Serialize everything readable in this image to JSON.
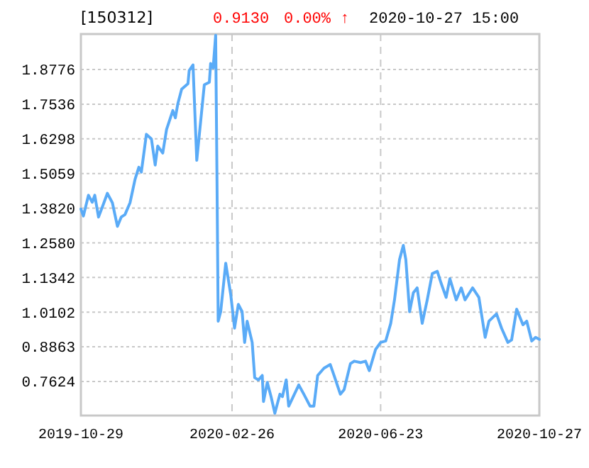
{
  "chart_data": {
    "type": "line",
    "title": "[150312]",
    "annotations": [
      "0.9130",
      "0.00% ↑",
      "2020-10-27 15:00"
    ],
    "xlim": [
      "2019-10-29",
      "2020-10-27"
    ],
    "xticks": [
      "2019-10-29",
      "2020-02-26",
      "2020-06-23",
      "2020-10-27"
    ],
    "ylim": [
      0.6407,
      2.0043
    ],
    "yticks": [
      {
        "value": 0.7624,
        "label": "0.7624"
      },
      {
        "value": 0.8863,
        "label": "0.8863"
      },
      {
        "value": 1.0102,
        "label": "1.0102"
      },
      {
        "value": 1.1342,
        "label": "1.1342"
      },
      {
        "value": 1.258,
        "label": "1.2580"
      },
      {
        "value": 1.382,
        "label": "1.3820"
      },
      {
        "value": 1.5059,
        "label": "1.5059"
      },
      {
        "value": 1.6298,
        "label": "1.6298"
      },
      {
        "value": 1.7536,
        "label": "1.7536"
      },
      {
        "value": 1.8776,
        "label": "1.8776"
      }
    ],
    "grid": true,
    "marker": "none",
    "line_style": "solid",
    "x": [
      "2019-10-29",
      "2019-10-31",
      "2019-11-04",
      "2019-11-07",
      "2019-11-09",
      "2019-11-12",
      "2019-11-16",
      "2019-11-19",
      "2019-11-23",
      "2019-11-27",
      "2019-11-30",
      "2019-12-03",
      "2019-12-07",
      "2019-12-11",
      "2019-12-14",
      "2019-12-16",
      "2019-12-20",
      "2019-12-24",
      "2019-12-27",
      "2019-12-29",
      "2020-01-02",
      "2020-01-05",
      "2020-01-10",
      "2020-01-12",
      "2020-01-14",
      "2020-01-17",
      "2020-01-22",
      "2020-01-23",
      "2020-01-26",
      "2020-01-29",
      "2020-02-01",
      "2020-02-04",
      "2020-02-08",
      "2020-02-09",
      "2020-02-11",
      "2020-02-13",
      "2020-02-14",
      "2020-02-15",
      "2020-02-17",
      "2020-02-21",
      "2020-02-25",
      "2020-02-28",
      "2020-03-02",
      "2020-03-05",
      "2020-03-07",
      "2020-03-09",
      "2020-03-13",
      "2020-03-15",
      "2020-03-18",
      "2020-03-21",
      "2020-03-22",
      "2020-03-25",
      "2020-03-28",
      "2020-03-31",
      "2020-04-04",
      "2020-04-06",
      "2020-04-09",
      "2020-04-11",
      "2020-04-19",
      "2020-04-23",
      "2020-04-28",
      "2020-05-01",
      "2020-05-04",
      "2020-05-09",
      "2020-05-14",
      "2020-05-17",
      "2020-05-22",
      "2020-05-25",
      "2020-05-30",
      "2020-06-02",
      "2020-06-07",
      "2020-06-11",
      "2020-06-14",
      "2020-06-19",
      "2020-06-23",
      "2020-06-27",
      "2020-07-01",
      "2020-07-04",
      "2020-07-08",
      "2020-07-11",
      "2020-07-13",
      "2020-07-16",
      "2020-07-19",
      "2020-07-22",
      "2020-07-26",
      "2020-07-30",
      "2020-08-03",
      "2020-08-07",
      "2020-08-10",
      "2020-08-14",
      "2020-08-17",
      "2020-08-22",
      "2020-08-26",
      "2020-08-29",
      "2020-09-04",
      "2020-09-09",
      "2020-09-14",
      "2020-09-17",
      "2020-09-23",
      "2020-09-27",
      "2020-10-02",
      "2020-10-05",
      "2020-10-09",
      "2020-10-14",
      "2020-10-17",
      "2020-10-21",
      "2020-10-24",
      "2020-10-27"
    ],
    "series": [
      {
        "color": "#5aabf7",
        "values": [
          1.379,
          1.354,
          1.428,
          1.403,
          1.428,
          1.35,
          1.398,
          1.435,
          1.401,
          1.317,
          1.35,
          1.359,
          1.401,
          1.485,
          1.528,
          1.511,
          1.646,
          1.629,
          1.536,
          1.604,
          1.579,
          1.663,
          1.731,
          1.705,
          1.756,
          1.807,
          1.827,
          1.874,
          1.894,
          1.553,
          1.688,
          1.823,
          1.832,
          1.899,
          1.883,
          2.0,
          1.519,
          0.978,
          1.012,
          1.185,
          1.072,
          0.953,
          1.038,
          1.012,
          0.902,
          0.978,
          0.902,
          0.776,
          0.768,
          0.784,
          0.691,
          0.759,
          0.708,
          0.649,
          0.717,
          0.708,
          0.768,
          0.674,
          0.75,
          0.717,
          0.674,
          0.674,
          0.784,
          0.81,
          0.823,
          0.784,
          0.717,
          0.733,
          0.826,
          0.835,
          0.83,
          0.835,
          0.801,
          0.877,
          0.902,
          0.907,
          0.97,
          1.054,
          1.198,
          1.249,
          1.198,
          1.012,
          1.08,
          1.097,
          0.97,
          1.054,
          1.148,
          1.156,
          1.114,
          1.063,
          1.13,
          1.054,
          1.097,
          1.054,
          1.097,
          1.063,
          0.92,
          0.978,
          1.004,
          0.953,
          0.902,
          0.911,
          1.021,
          0.965,
          0.978,
          0.907,
          0.92,
          0.913
        ]
      }
    ]
  }
}
